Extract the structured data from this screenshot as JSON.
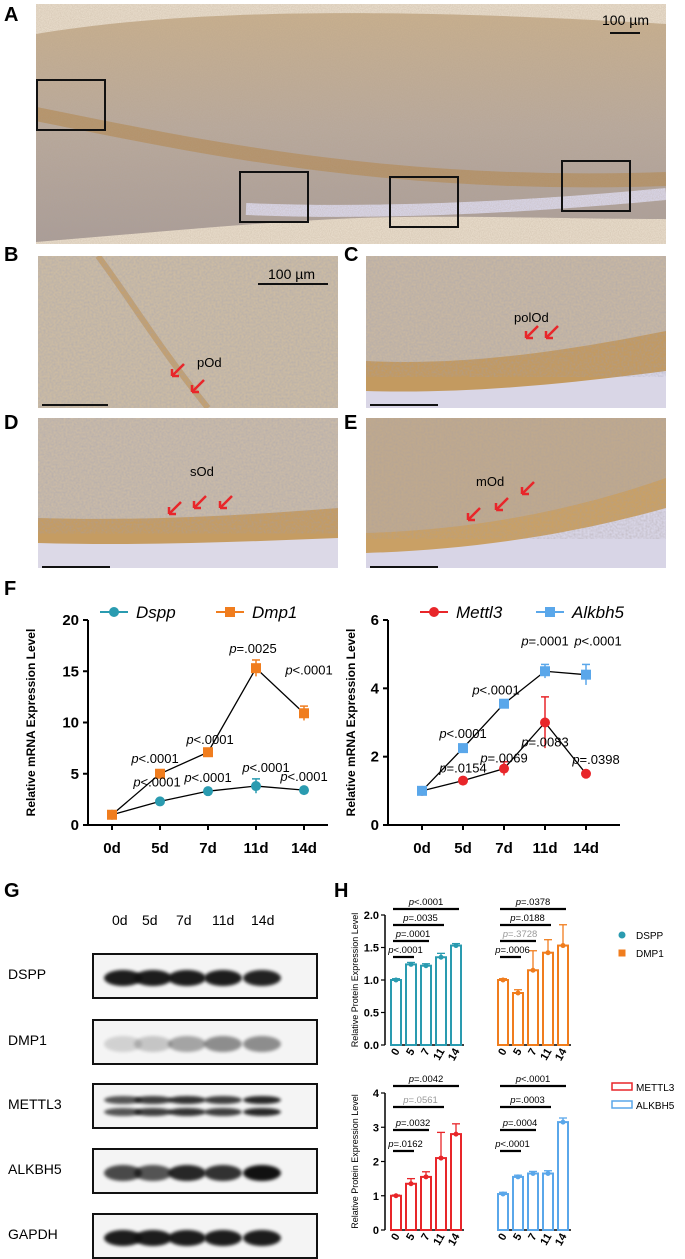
{
  "panels": {
    "A": {
      "label": "A",
      "scale": "100 µm"
    },
    "B": {
      "label": "B",
      "scale": "100 µm",
      "cell": "pOd"
    },
    "C": {
      "label": "C",
      "cell": "polOd"
    },
    "D": {
      "label": "D",
      "cell": "sOd"
    },
    "E": {
      "label": "E",
      "cell": "mOd"
    },
    "F": {
      "label": "F"
    },
    "G": {
      "label": "G"
    },
    "H": {
      "label": "H"
    }
  },
  "colors": {
    "teal": "#2a9bb0",
    "orange": "#f07d1e",
    "red": "#e8262a",
    "blue": "#5aa7ea"
  },
  "chart_data": [
    {
      "type": "line",
      "id": "F-left",
      "ylabel": "Relative mRNA Expression Level",
      "categories": [
        "0d",
        "5d",
        "7d",
        "11d",
        "14d"
      ],
      "ylim": [
        0,
        20
      ],
      "yticks": [
        "0",
        "5",
        "10",
        "15",
        "20"
      ],
      "series": [
        {
          "name": "Dspp",
          "values": [
            1,
            2.3,
            3.3,
            3.8,
            3.4
          ],
          "err": [
            0,
            0,
            0,
            0.7,
            0
          ],
          "color": "#2a9bb0"
        },
        {
          "name": "Dmp1",
          "values": [
            1,
            5.0,
            7.1,
            15.3,
            10.9
          ],
          "err": [
            0,
            0,
            0,
            0.8,
            0.7
          ],
          "color": "#f07d1e"
        }
      ],
      "annotations": [
        {
          "text": "p<.0001"
        },
        {
          "text": "p<.0001"
        },
        {
          "text": "p<.0001"
        },
        {
          "text": "p<.0001"
        },
        {
          "text": "p<.0001"
        },
        {
          "text": "p<.0001"
        },
        {
          "text": "p=.0025"
        },
        {
          "text": "p<.0001"
        }
      ]
    },
    {
      "type": "line",
      "id": "F-right",
      "ylabel": "Relative mRNA Expression Level",
      "categories": [
        "0d",
        "5d",
        "7d",
        "11d",
        "14d"
      ],
      "ylim": [
        0,
        6
      ],
      "yticks": [
        "0",
        "2",
        "4",
        "6"
      ],
      "series": [
        {
          "name": "Mettl3",
          "values": [
            1,
            1.3,
            1.65,
            3.0,
            1.5
          ],
          "err": [
            0,
            0,
            0.2,
            0.75,
            0
          ],
          "color": "#e8262a"
        },
        {
          "name": "Alkbh5",
          "values": [
            1,
            2.25,
            3.55,
            4.5,
            4.4
          ],
          "err": [
            0,
            0,
            0.1,
            0.2,
            0.3
          ],
          "color": "#5aa7ea"
        }
      ],
      "annotations": [
        {
          "text": "p=.0154"
        },
        {
          "text": "p=.0069"
        },
        {
          "text": "p=.0083"
        },
        {
          "text": "p=.0398"
        },
        {
          "text": "p<.0001"
        },
        {
          "text": "p<.0001"
        },
        {
          "text": "p=.0001"
        },
        {
          "text": "p<.0001"
        }
      ]
    },
    {
      "type": "bar",
      "id": "H-top",
      "ylabel": "Relative Protein Expression Level",
      "categories": [
        "0",
        "5",
        "7",
        "11",
        "14"
      ],
      "ylim": [
        0,
        2.0
      ],
      "yticks": [
        "0.0",
        "0.5",
        "1.0",
        "1.5",
        "2.0"
      ],
      "series": [
        {
          "name": "DSPP",
          "values": [
            1.0,
            1.24,
            1.22,
            1.35,
            1.53
          ],
          "err": [
            0.02,
            0.03,
            0.03,
            0.06,
            0.03
          ],
          "color": "#2a9bb0"
        },
        {
          "name": "DMP1",
          "values": [
            1.0,
            0.8,
            1.15,
            1.42,
            1.53
          ],
          "err": [
            0.02,
            0.05,
            0.3,
            0.2,
            0.32
          ],
          "color": "#f07d1e"
        }
      ],
      "brackets": [
        {
          "group": 0,
          "text": "p<.0001",
          "gray": false
        },
        {
          "group": 0,
          "text": "p=.0035",
          "gray": false
        },
        {
          "group": 0,
          "text": "p=.0001",
          "gray": false
        },
        {
          "group": 0,
          "text": "p<.0001",
          "gray": false
        },
        {
          "group": 1,
          "text": "p=.0378",
          "gray": false
        },
        {
          "group": 1,
          "text": "p=.0188",
          "gray": false
        },
        {
          "group": 1,
          "text": "p=.3728",
          "gray": true
        },
        {
          "group": 1,
          "text": "p=.0006",
          "gray": false
        }
      ]
    },
    {
      "type": "bar",
      "id": "H-bottom",
      "ylabel": "Relative Protein Expression Level",
      "categories": [
        "0",
        "5",
        "7",
        "11",
        "14"
      ],
      "ylim": [
        0,
        4
      ],
      "yticks": [
        "0",
        "1",
        "2",
        "3",
        "4"
      ],
      "series": [
        {
          "name": "METTL3",
          "values": [
            1.0,
            1.35,
            1.55,
            2.1,
            2.8
          ],
          "err": [
            0.02,
            0.15,
            0.15,
            0.75,
            0.3
          ],
          "color": "#e8262a"
        },
        {
          "name": "ALKBH5",
          "values": [
            1.05,
            1.55,
            1.65,
            1.65,
            3.15
          ],
          "err": [
            0.05,
            0.05,
            0.06,
            0.08,
            0.12
          ],
          "color": "#5aa7ea"
        }
      ],
      "brackets": [
        {
          "group": 0,
          "text": "p=.0042",
          "gray": false
        },
        {
          "group": 0,
          "text": "p=.0561",
          "gray": true
        },
        {
          "group": 0,
          "text": "p=.0032",
          "gray": false
        },
        {
          "group": 0,
          "text": "p=.0162",
          "gray": false
        },
        {
          "group": 1,
          "text": "p<.0001",
          "gray": false
        },
        {
          "group": 1,
          "text": "p=.0003",
          "gray": false
        },
        {
          "group": 1,
          "text": "p=.0004",
          "gray": false
        },
        {
          "group": 1,
          "text": "p<.0001",
          "gray": false
        }
      ]
    }
  ],
  "blot": {
    "lanes": [
      "0d",
      "5d",
      "7d",
      "11d",
      "14d"
    ],
    "rows": [
      {
        "label": "DSPP",
        "intensity": [
          0.95,
          0.95,
          0.95,
          0.95,
          0.92
        ],
        "double": false
      },
      {
        "label": "DMP1",
        "intensity": [
          0.15,
          0.2,
          0.35,
          0.45,
          0.45
        ],
        "double": false
      },
      {
        "label": "METTL3",
        "intensity": [
          0.7,
          0.8,
          0.85,
          0.8,
          0.9
        ],
        "double": true
      },
      {
        "label": "ALKBH5",
        "intensity": [
          0.75,
          0.7,
          0.9,
          0.85,
          1.0
        ],
        "double": false
      },
      {
        "label": "GAPDH",
        "intensity": [
          0.95,
          0.95,
          0.95,
          0.95,
          0.95
        ],
        "double": false
      }
    ]
  }
}
